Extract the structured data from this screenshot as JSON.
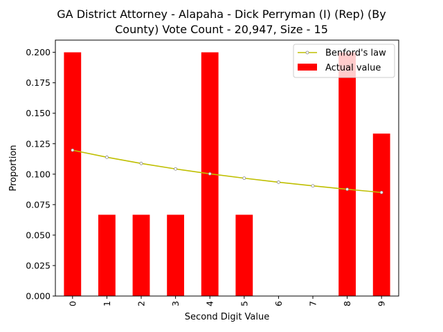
{
  "chart_data": {
    "type": "bar",
    "title_line1": "GA District Attorney - Alapaha - Dick Perryman (I) (Rep) (By",
    "title_line2": "County) Vote Count - 20,947, Size - 15",
    "xlabel": "Second Digit Value",
    "ylabel": "Proportion",
    "categories": [
      "0",
      "1",
      "2",
      "3",
      "4",
      "5",
      "6",
      "7",
      "8",
      "9"
    ],
    "ylim": [
      0,
      0.21
    ],
    "yticks": [
      0.0,
      0.025,
      0.05,
      0.075,
      0.1,
      0.125,
      0.15,
      0.175,
      0.2
    ],
    "ytick_labels": [
      "0.000",
      "0.025",
      "0.050",
      "0.075",
      "0.100",
      "0.125",
      "0.150",
      "0.175",
      "0.200"
    ],
    "grid": false,
    "legend_position": "top-right",
    "series": [
      {
        "name": "Actual value",
        "type": "bar",
        "color": "#ff0000",
        "values": [
          0.2,
          0.0667,
          0.0667,
          0.0667,
          0.2,
          0.0667,
          0.0,
          0.0,
          0.2,
          0.1333
        ]
      },
      {
        "name": "Benford's law",
        "type": "line",
        "color": "#bfbf00",
        "values": [
          0.1197,
          0.1139,
          0.1088,
          0.1043,
          0.1003,
          0.0967,
          0.0934,
          0.0904,
          0.0876,
          0.085
        ]
      }
    ]
  }
}
